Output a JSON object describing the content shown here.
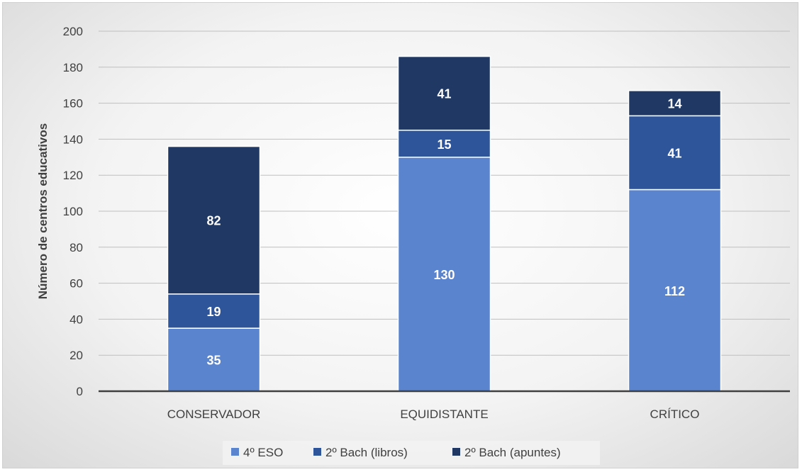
{
  "chart_data": {
    "type": "bar",
    "stacked": true,
    "categories": [
      "CONSERVADOR",
      "EQUIDISTANTE",
      "CRÍTICO"
    ],
    "series": [
      {
        "name": "4º ESO",
        "values": [
          35,
          130,
          112
        ],
        "color": "#5b84cf"
      },
      {
        "name": "2º Bach (libros)",
        "values": [
          19,
          15,
          41
        ],
        "color": "#2e5599"
      },
      {
        "name": "2º Bach (apuntes)",
        "values": [
          82,
          41,
          14
        ],
        "color": "#203864"
      }
    ],
    "ylabel": "Número de centros educativos",
    "xlabel": "",
    "ylim": [
      0,
      200
    ],
    "yticks": [
      0,
      20,
      40,
      60,
      80,
      100,
      120,
      140,
      160,
      180,
      200
    ],
    "grid": true,
    "legend_position": "bottom"
  }
}
